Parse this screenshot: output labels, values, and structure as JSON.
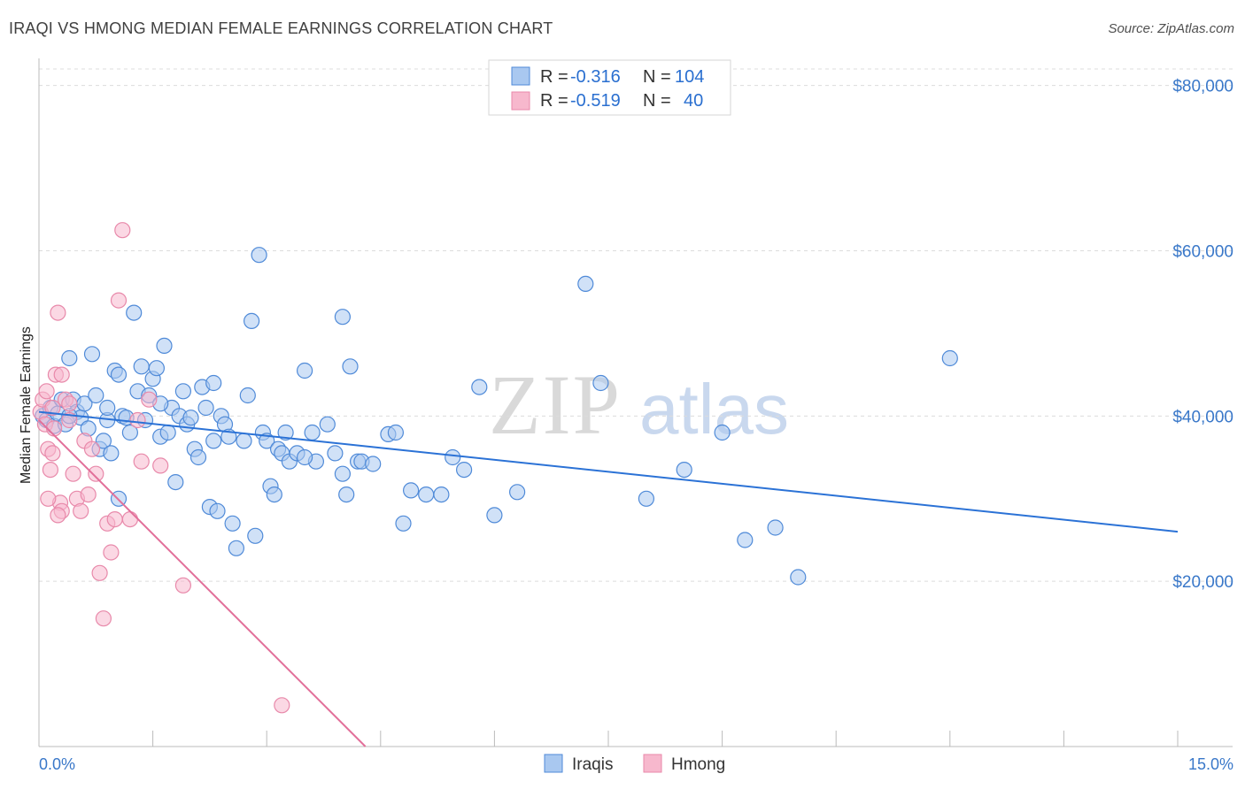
{
  "header": {
    "title": "IRAQI VS HMONG MEDIAN FEMALE EARNINGS CORRELATION CHART",
    "source": "Source: ZipAtlas.com"
  },
  "watermark": {
    "zip": "ZIP",
    "atlas": "atlas"
  },
  "colors": {
    "blue_fill": "#a9c8f0",
    "blue_stroke": "#4f8ad8",
    "blue_line": "#2b72d6",
    "pink_fill": "#f7b8cd",
    "pink_stroke": "#e889aa",
    "pink_line": "#e2709a",
    "axis_text": "#3a78c9",
    "grid": "#dcdcdc"
  },
  "legend": {
    "rows": [
      {
        "r_label": "R = ",
        "r_value": "-0.316",
        "n_label": "N = ",
        "n_value": "104"
      },
      {
        "r_label": "R = ",
        "r_value": "-0.519",
        "n_label": "N = ",
        "n_value": "40"
      }
    ]
  },
  "chart_data": {
    "type": "scatter",
    "title": "IRAQI VS HMONG MEDIAN FEMALE EARNINGS CORRELATION CHART",
    "xlabel": "",
    "ylabel": "Median Female Earnings",
    "xlim": [
      0,
      15
    ],
    "ylim": [
      0,
      82000
    ],
    "x_tick_labels": [
      "0.0%",
      "15.0%"
    ],
    "y_ticks": [
      20000,
      40000,
      60000,
      80000
    ],
    "y_tick_labels": [
      "$20,000",
      "$40,000",
      "$60,000",
      "$80,000"
    ],
    "series": [
      {
        "name": "Iraqis",
        "r": -0.316,
        "n": 104,
        "trend": {
          "x": [
            0,
            15
          ],
          "y": [
            40500,
            26000
          ]
        },
        "points": [
          [
            0.05,
            40000
          ],
          [
            0.1,
            39500
          ],
          [
            0.15,
            41000
          ],
          [
            0.2,
            38800
          ],
          [
            0.25,
            40300
          ],
          [
            0.3,
            42000
          ],
          [
            0.35,
            39000
          ],
          [
            0.4,
            47000
          ],
          [
            0.45,
            42000
          ],
          [
            0.5,
            40500
          ],
          [
            0.55,
            39800
          ],
          [
            0.6,
            41500
          ],
          [
            0.65,
            38500
          ],
          [
            0.7,
            47500
          ],
          [
            0.75,
            42500
          ],
          [
            0.8,
            36000
          ],
          [
            0.85,
            37000
          ],
          [
            0.9,
            39500
          ],
          [
            0.95,
            35500
          ],
          [
            1.0,
            45500
          ],
          [
            1.05,
            30000
          ],
          [
            1.1,
            40000
          ],
          [
            1.15,
            39800
          ],
          [
            1.05,
            45000
          ],
          [
            1.2,
            38000
          ],
          [
            1.25,
            52500
          ],
          [
            1.3,
            43000
          ],
          [
            1.35,
            46000
          ],
          [
            1.4,
            39500
          ],
          [
            1.45,
            42500
          ],
          [
            1.5,
            44500
          ],
          [
            1.55,
            45800
          ],
          [
            1.6,
            37500
          ],
          [
            1.65,
            48500
          ],
          [
            1.7,
            38000
          ],
          [
            1.75,
            41000
          ],
          [
            1.8,
            32000
          ],
          [
            1.85,
            40000
          ],
          [
            1.9,
            43000
          ],
          [
            1.95,
            39000
          ],
          [
            2.0,
            39800
          ],
          [
            2.05,
            36000
          ],
          [
            2.1,
            35000
          ],
          [
            2.15,
            43500
          ],
          [
            2.2,
            41000
          ],
          [
            2.25,
            29000
          ],
          [
            2.3,
            44000
          ],
          [
            2.35,
            28500
          ],
          [
            2.4,
            40000
          ],
          [
            2.45,
            39000
          ],
          [
            2.5,
            37500
          ],
          [
            2.55,
            27000
          ],
          [
            2.6,
            24000
          ],
          [
            2.7,
            37000
          ],
          [
            2.75,
            42500
          ],
          [
            2.8,
            51500
          ],
          [
            2.85,
            25500
          ],
          [
            2.9,
            59500
          ],
          [
            2.95,
            38000
          ],
          [
            3.0,
            37000
          ],
          [
            3.05,
            31500
          ],
          [
            3.1,
            30500
          ],
          [
            3.15,
            36000
          ],
          [
            3.2,
            35500
          ],
          [
            3.25,
            38000
          ],
          [
            3.3,
            34500
          ],
          [
            3.4,
            35500
          ],
          [
            3.5,
            45500
          ],
          [
            3.6,
            38000
          ],
          [
            3.65,
            34500
          ],
          [
            3.8,
            39000
          ],
          [
            3.5,
            35000
          ],
          [
            4.0,
            33000
          ],
          [
            4.05,
            30500
          ],
          [
            4.0,
            52000
          ],
          [
            4.1,
            46000
          ],
          [
            4.2,
            34500
          ],
          [
            4.25,
            34500
          ],
          [
            4.4,
            34200
          ],
          [
            3.9,
            35500
          ],
          [
            4.6,
            37800
          ],
          [
            4.7,
            38000
          ],
          [
            4.8,
            27000
          ],
          [
            4.9,
            31000
          ],
          [
            5.1,
            30500
          ],
          [
            5.3,
            30500
          ],
          [
            5.45,
            35000
          ],
          [
            5.6,
            33500
          ],
          [
            5.8,
            43500
          ],
          [
            6.0,
            28000
          ],
          [
            6.3,
            30800
          ],
          [
            7.2,
            56000
          ],
          [
            7.4,
            44000
          ],
          [
            8.0,
            30000
          ],
          [
            8.5,
            33500
          ],
          [
            9.0,
            38000
          ],
          [
            9.3,
            25000
          ],
          [
            9.7,
            26500
          ],
          [
            10.0,
            20500
          ],
          [
            12.0,
            47000
          ],
          [
            0.4,
            40000
          ],
          [
            0.9,
            41000
          ],
          [
            1.6,
            41500
          ],
          [
            2.3,
            37000
          ]
        ]
      },
      {
        "name": "Hmong",
        "r": -0.519,
        "n": 40,
        "trend": {
          "x": [
            0,
            4.3
          ],
          "y": [
            39500,
            0
          ]
        },
        "points": [
          [
            0.02,
            40500
          ],
          [
            0.05,
            42000
          ],
          [
            0.08,
            39000
          ],
          [
            0.1,
            43000
          ],
          [
            0.12,
            36000
          ],
          [
            0.15,
            33500
          ],
          [
            0.18,
            41000
          ],
          [
            0.2,
            38500
          ],
          [
            0.22,
            45000
          ],
          [
            0.25,
            52500
          ],
          [
            0.28,
            29500
          ],
          [
            0.3,
            28500
          ],
          [
            0.35,
            42000
          ],
          [
            0.4,
            41500
          ],
          [
            0.45,
            33000
          ],
          [
            0.5,
            30000
          ],
          [
            0.55,
            28500
          ],
          [
            0.6,
            37000
          ],
          [
            0.65,
            30500
          ],
          [
            0.7,
            36000
          ],
          [
            0.75,
            33000
          ],
          [
            0.8,
            21000
          ],
          [
            0.85,
            15500
          ],
          [
            0.9,
            27000
          ],
          [
            0.95,
            23500
          ],
          [
            1.0,
            27500
          ],
          [
            1.05,
            54000
          ],
          [
            1.1,
            62500
          ],
          [
            1.2,
            27500
          ],
          [
            1.3,
            39500
          ],
          [
            1.35,
            34500
          ],
          [
            1.45,
            42000
          ],
          [
            1.6,
            34000
          ],
          [
            1.9,
            19500
          ],
          [
            0.12,
            30000
          ],
          [
            0.18,
            35500
          ],
          [
            0.25,
            28000
          ],
          [
            0.3,
            45000
          ],
          [
            0.4,
            39500
          ],
          [
            3.2,
            5000
          ]
        ]
      }
    ]
  },
  "bottom_legend": {
    "items": [
      "Iraqis",
      "Hmong"
    ]
  }
}
